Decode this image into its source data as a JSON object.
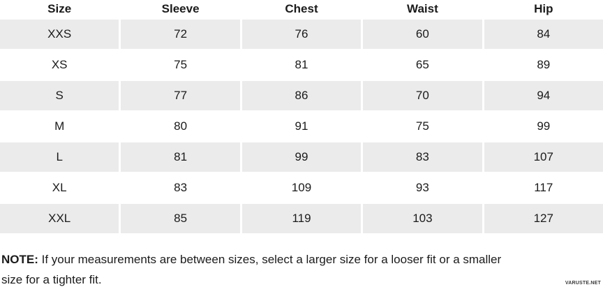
{
  "chart_data": {
    "type": "table",
    "columns": [
      "Size",
      "Sleeve",
      "Chest",
      "Waist",
      "Hip"
    ],
    "rows": [
      [
        "XXS",
        "72",
        "76",
        "60",
        "84"
      ],
      [
        "XS",
        "75",
        "81",
        "65",
        "89"
      ],
      [
        "S",
        "77",
        "86",
        "70",
        "94"
      ],
      [
        "M",
        "80",
        "91",
        "75",
        "99"
      ],
      [
        "L",
        "81",
        "99",
        "83",
        "107"
      ],
      [
        "XL",
        "83",
        "109",
        "93",
        "117"
      ],
      [
        "XXL",
        "85",
        "119",
        "103",
        "127"
      ]
    ],
    "layout_hints": {
      "striped_rows": [
        "XXS",
        "S",
        "L",
        "XXL"
      ],
      "stripe_color": "#ebebeb",
      "text_color": "#1b1b1b",
      "grid": "off"
    }
  },
  "note": {
    "label": "NOTE:",
    "text": " If your measurements are between sizes, select a larger size for a looser fit or a smaller size for a tighter fit."
  },
  "watermark": "VARUSTE.NET"
}
